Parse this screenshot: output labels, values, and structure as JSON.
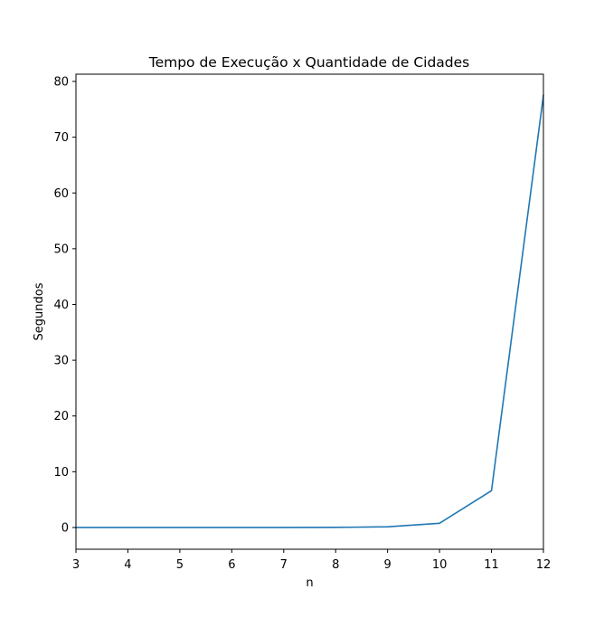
{
  "chart_data": {
    "type": "line",
    "title": "Tempo de Execução x Quantidade de Cidades",
    "xlabel": "n",
    "ylabel": "Segundos",
    "xlim": [
      3,
      12
    ],
    "ylim": [
      -3.9,
      81.3
    ],
    "xticks": [
      3,
      4,
      5,
      6,
      7,
      8,
      9,
      10,
      11,
      12
    ],
    "yticks": [
      0,
      10,
      20,
      30,
      40,
      50,
      60,
      70,
      80
    ],
    "grid": false,
    "series": [
      {
        "color": "#1f77b4",
        "x": [
          3,
          4,
          5,
          6,
          7,
          8,
          9,
          10,
          11,
          12
        ],
        "y": [
          0.0,
          0.0,
          0.0,
          0.0,
          0.0,
          0.02,
          0.12,
          0.75,
          6.6,
          77.5
        ]
      }
    ]
  }
}
